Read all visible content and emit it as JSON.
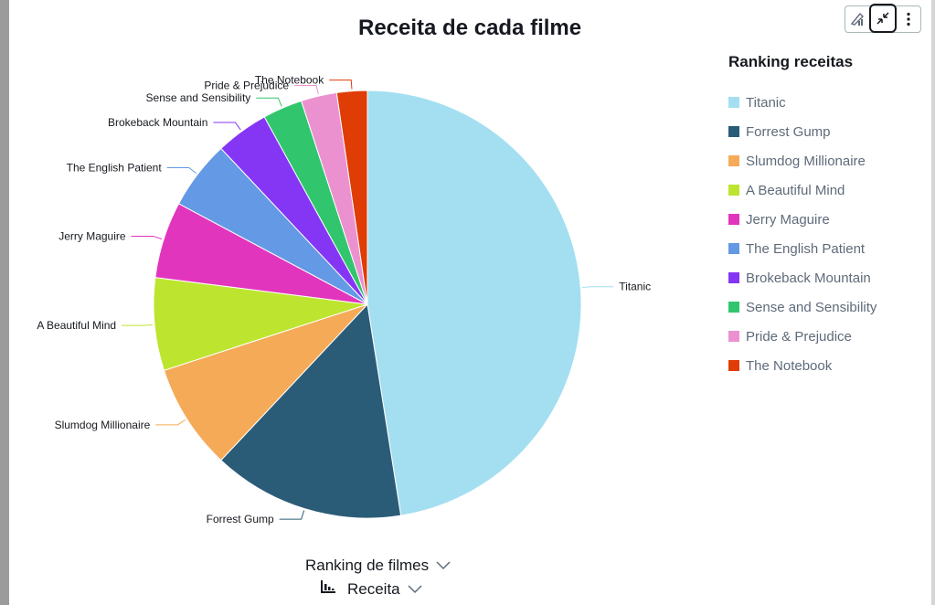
{
  "chart_data": {
    "type": "pie",
    "title": "Receita de cada filme",
    "categories": [
      "Titanic",
      "Forrest Gump",
      "Slumdog Millionaire",
      "A Beautiful Mind",
      "Jerry Maguire",
      "The English Patient",
      "Brokeback Mountain",
      "Sense and Sensibility",
      "Pride & Prejudice",
      "The Notebook"
    ],
    "values": [
      47.5,
      14.5,
      8.0,
      7.0,
      5.8,
      5.2,
      4.0,
      3.0,
      2.7,
      2.3
    ],
    "colors": [
      "#a3dff0",
      "#2a5c78",
      "#f5aa57",
      "#bde52f",
      "#e235bd",
      "#6399e5",
      "#8536f5",
      "#31c66e",
      "#eb91cf",
      "#e03c06"
    ],
    "legend": {
      "title": "Ranking receitas",
      "placement": "right"
    },
    "group_by_label": "Ranking de filmes",
    "value_label": "Receita"
  },
  "toolbar": {
    "icons": [
      "pen-chart-icon",
      "collapse-icon",
      "more-vertical-icon"
    ]
  }
}
